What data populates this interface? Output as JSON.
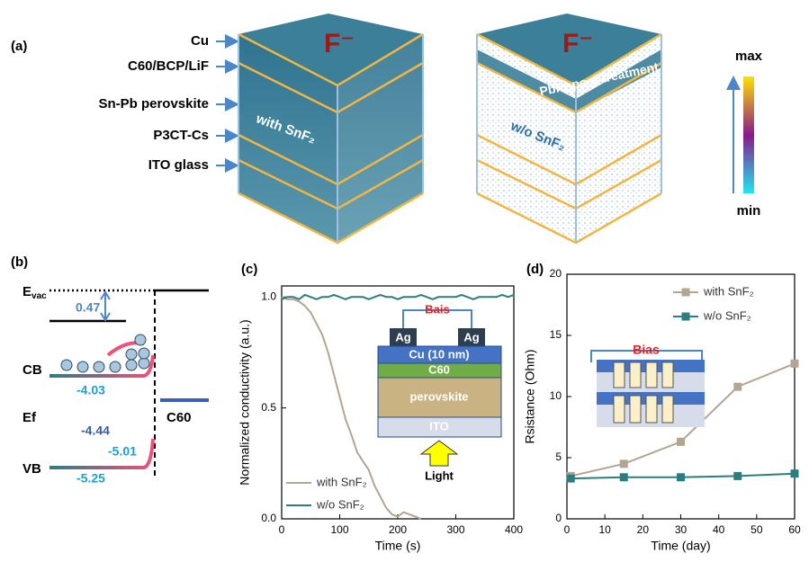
{
  "panel_a": {
    "label": "(a)",
    "layers": [
      "Cu",
      "C60/BCP/LiF",
      "Sn-Pb perovskite",
      "P3CT-Cs",
      "ITO glass"
    ],
    "ion": "F⁻",
    "left_cube": "with SnF₂",
    "right_cube": "w/o SnF₂",
    "treatment": "PbF₂ post-treatment",
    "colorbar_max": "max",
    "colorbar_min": "min"
  },
  "panel_b": {
    "label": "(b)",
    "evac": "E",
    "evac_sub": "vac",
    "gap": "0.47",
    "cb": "CB",
    "cb_value": "-4.03",
    "ef": "Ef",
    "ef_value": "-4.44",
    "vb": "VB",
    "vb_bend": "-5.01",
    "vb_value": "-5.25",
    "c60": "C60"
  },
  "chart_data": [
    {
      "type": "line",
      "panel_label": "(c)",
      "xlabel": "Time (s)",
      "ylabel": "Normalized conductivity (a.u.)",
      "x": [
        0,
        10,
        20,
        30,
        40,
        50,
        60,
        70,
        80,
        90,
        100,
        110,
        120,
        130,
        140,
        150,
        160,
        170,
        180,
        190,
        200,
        210,
        220,
        230,
        240,
        250,
        260,
        270,
        280,
        290,
        300,
        310,
        320,
        330,
        340,
        350,
        360,
        370,
        380,
        390,
        400
      ],
      "series": [
        {
          "name": "with SnF₂",
          "color": "#b3a58f",
          "values": [
            1.0,
            0.99,
            0.99,
            0.98,
            0.96,
            0.93,
            0.88,
            0.83,
            0.75,
            0.65,
            0.55,
            0.45,
            0.38,
            0.3,
            0.26,
            0.22,
            0.15,
            0.1,
            0.05,
            0.02,
            0.01,
            0.03,
            0.02,
            0.01,
            0.0,
            null,
            null,
            null,
            null,
            null,
            null,
            null,
            null,
            null,
            null,
            null,
            null,
            null,
            null,
            null,
            null
          ]
        },
        {
          "name": "w/o SnF₂",
          "color": "#2b7e80",
          "values": [
            0.99,
            1.0,
            1.0,
            0.99,
            1.01,
            1.0,
            0.99,
            1.0,
            1.0,
            1.01,
            1.0,
            0.99,
            1.0,
            1.0,
            1.0,
            0.99,
            1.0,
            1.01,
            1.0,
            1.0,
            0.99,
            1.0,
            1.0,
            1.0,
            1.01,
            1.0,
            0.99,
            1.0,
            1.0,
            1.0,
            1.0,
            1.01,
            1.0,
            0.99,
            1.0,
            1.0,
            1.0,
            1.0,
            1.01,
            1.0,
            1.01
          ]
        }
      ],
      "xlim": [
        0,
        400
      ],
      "xticks": [
        0,
        100,
        200,
        300,
        400
      ],
      "ylim": [
        0,
        1.05
      ],
      "yticks": [
        {
          "value": 0,
          "label": "0.0"
        },
        {
          "value": 0.5,
          "label": "0.5"
        },
        {
          "value": 1,
          "label": "1.0"
        }
      ],
      "markers": false,
      "inset": {
        "bias": "Bais",
        "ag_left": "Ag",
        "ag_right": "Ag",
        "cu": "Cu (10 nm)",
        "c60": "C60",
        "perovskite": "perovskite",
        "ito": "ITO",
        "light": "Light"
      }
    },
    {
      "type": "line",
      "panel_label": "(d)",
      "xlabel": "Time (day)",
      "ylabel": "Rsistance (Ohm)",
      "x": [
        1,
        15,
        30,
        45,
        60
      ],
      "series": [
        {
          "name": "with SnF₂",
          "color": "#b3a58f",
          "values": [
            3.5,
            4.5,
            6.3,
            10.8,
            12.7
          ]
        },
        {
          "name": "w/o SnF₂",
          "color": "#2b7e80",
          "values": [
            3.3,
            3.4,
            3.4,
            3.5,
            3.7
          ]
        }
      ],
      "xlim": [
        0,
        60
      ],
      "xticks": [
        0,
        10,
        20,
        30,
        40,
        50,
        60
      ],
      "ylim": [
        0,
        20
      ],
      "yticks": [
        0,
        5,
        10,
        15,
        20
      ],
      "markers": true,
      "inset": {
        "bias": "Bias"
      }
    }
  ]
}
